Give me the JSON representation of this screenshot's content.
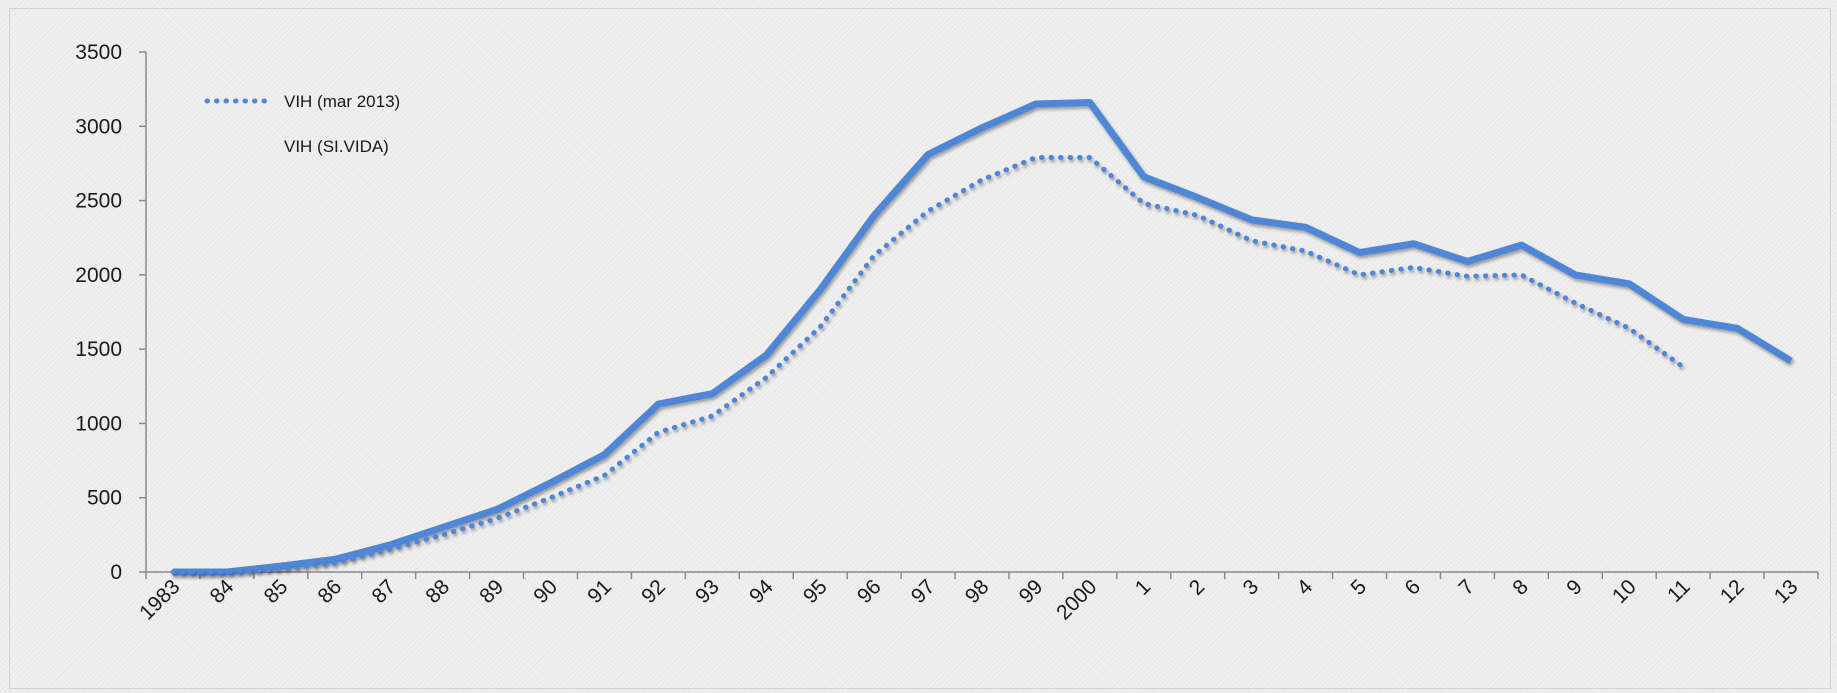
{
  "chart_data": {
    "type": "line",
    "title": "",
    "xlabel": "",
    "ylabel": "",
    "categories": [
      "1983",
      "84",
      "85",
      "86",
      "87",
      "88",
      "89",
      "90",
      "91",
      "92",
      "93",
      "94",
      "95",
      "96",
      "97",
      "98",
      "99",
      "2000",
      "1",
      "2",
      "3",
      "4",
      "5",
      "6",
      "7",
      "8",
      "9",
      "10",
      "11",
      "12",
      "13"
    ],
    "ylim": [
      0,
      3500
    ],
    "yticks": [
      0,
      500,
      1000,
      1500,
      2000,
      2500,
      3000,
      3500
    ],
    "grid": false,
    "legend": "top-left",
    "series": [
      {
        "name": "VIH (mar 2013)",
        "style": "dotted",
        "color": "#4f86d6",
        "values": [
          0,
          0,
          20,
          60,
          150,
          250,
          360,
          500,
          650,
          940,
          1050,
          1310,
          1650,
          2130,
          2430,
          2640,
          2790,
          2790,
          2480,
          2400,
          2230,
          2160,
          2000,
          2050,
          1990,
          2000,
          1810,
          1640,
          1380,
          null,
          null
        ]
      },
      {
        "name": "VIH (SI.VIDA)",
        "style": "solid",
        "color": "#4f86d6",
        "values": [
          0,
          0,
          40,
          85,
          180,
          300,
          420,
          600,
          790,
          1130,
          1200,
          1460,
          1900,
          2400,
          2810,
          2990,
          3150,
          3160,
          2660,
          2520,
          2370,
          2320,
          2150,
          2210,
          2090,
          2200,
          2000,
          1940,
          1700,
          1640,
          1420
        ]
      }
    ]
  }
}
